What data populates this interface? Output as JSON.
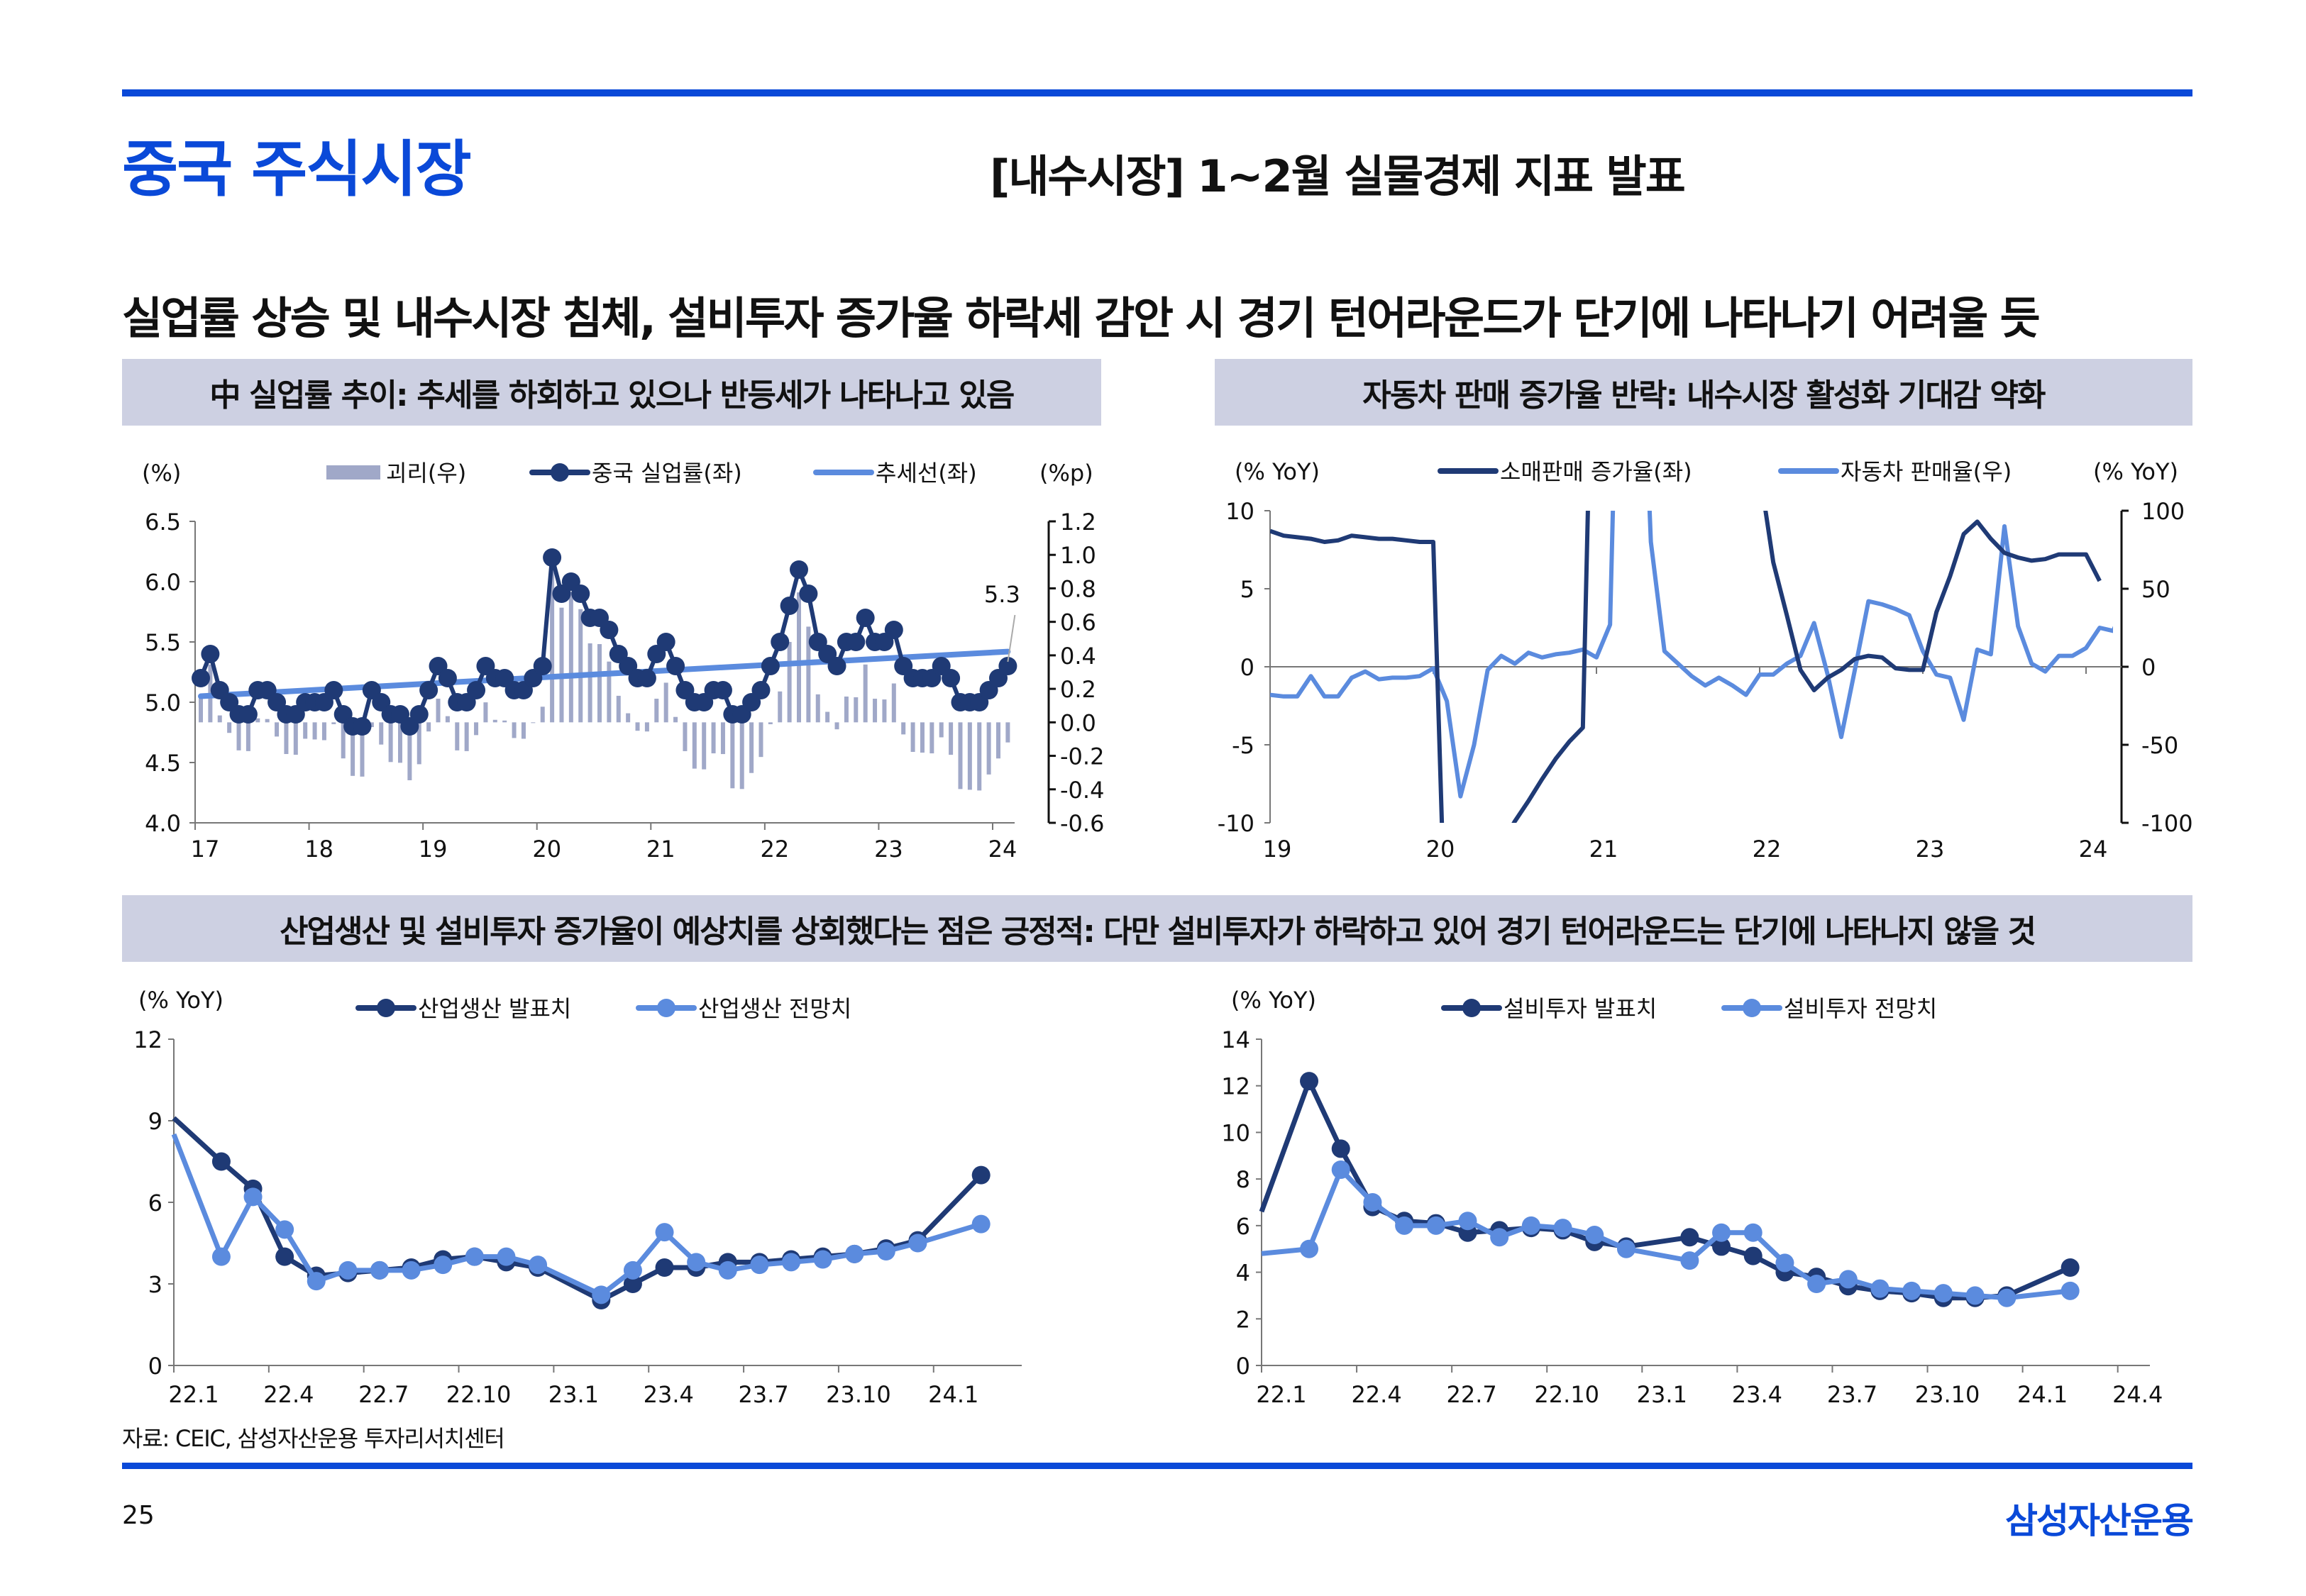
{
  "header": {
    "section_title": "중국 주식시장",
    "subtitle": "[내수시장] 1~2월 실물경제 지표 발표",
    "headline": "실업률 상승 및 내수시장 침체, 설비투자 증가율 하락세 감안 시 경기 턴어라운드가 단기에 나타나기 어려울 듯"
  },
  "bands": {
    "top_left": "中 실업률 추이: 추세를 하회하고 있으나 반등세가 나타나고 있음",
    "top_right": "자동차 판매 증가율 반락: 내수시장 활성화 기대감 약화",
    "bottom": "산업생산 및 설비투자 증가율이 예상치를 상회했다는 점은 긍정적: 다만 설비투자가 하락하고 있어 경기 턴어라운드는 단기에 나타나지 않을 것"
  },
  "colors": {
    "brand_blue": "#0A49D8",
    "band_bg": "#CDD0E2",
    "dark_navy": "#1F3A75",
    "light_blue": "#5B8BDE",
    "bar_lavender": "#A0A8C8"
  },
  "chart_data": [
    {
      "id": "unemployment",
      "type": "line",
      "title": "中 실업률 추이",
      "left_unit": "(%)",
      "right_unit": "(%p)",
      "legend": [
        "괴리(우)",
        "중국 실업률(좌)",
        "추세선(좌)"
      ],
      "legend_position": "top",
      "x_ticks": [
        "17",
        "18",
        "19",
        "20",
        "21",
        "22",
        "23",
        "24"
      ],
      "y_left_ticks": [
        "6.5",
        "6.0",
        "5.5",
        "5.0",
        "4.5",
        "4.0"
      ],
      "y_right_ticks": [
        "1.2",
        "1.0",
        "0.8",
        "0.6",
        "0.4",
        "0.2",
        "0.0",
        "-0.2",
        "-0.4",
        "-0.6"
      ],
      "ylim_left": [
        4.0,
        6.5
      ],
      "ylim_right": [
        -0.6,
        1.2
      ],
      "x_start": "2017-01",
      "annotation": "5.3",
      "series": [
        {
          "name": "중국 실업률(좌)",
          "axis": "left",
          "values": [
            5.2,
            5.4,
            5.1,
            5.0,
            4.9,
            4.9,
            5.1,
            5.1,
            5.0,
            4.9,
            4.9,
            5.0,
            5.0,
            5.0,
            5.1,
            4.9,
            4.8,
            4.8,
            5.1,
            5.0,
            4.9,
            4.9,
            4.8,
            4.9,
            5.1,
            5.3,
            5.2,
            5.0,
            5.0,
            5.1,
            5.3,
            5.2,
            5.2,
            5.1,
            5.1,
            5.2,
            5.3,
            6.2,
            5.9,
            6.0,
            5.9,
            5.7,
            5.7,
            5.6,
            5.4,
            5.3,
            5.2,
            5.2,
            5.4,
            5.5,
            5.3,
            5.1,
            5.0,
            5.0,
            5.1,
            5.1,
            4.9,
            4.9,
            5.0,
            5.1,
            5.3,
            5.5,
            5.8,
            6.1,
            5.9,
            5.5,
            5.4,
            5.3,
            5.5,
            5.5,
            5.7,
            5.5,
            5.5,
            5.6,
            5.3,
            5.2,
            5.2,
            5.2,
            5.3,
            5.2,
            5.0,
            5.0,
            5.0,
            5.1,
            5.2,
            5.3
          ]
        },
        {
          "name": "추세선(좌)",
          "axis": "left",
          "trend_start": 5.05,
          "trend_end": 5.42
        },
        {
          "name": "괴리(우)",
          "axis": "right",
          "type": "bar",
          "derived": "actual minus trend"
        }
      ]
    },
    {
      "id": "retail_auto",
      "type": "line",
      "title": "자동차 판매 증가율 반락",
      "left_unit": "(% YoY)",
      "right_unit": "(% YoY)",
      "legend": [
        "소매판매 증가율(좌)",
        "자동차 판매율(우)"
      ],
      "legend_position": "top",
      "x_ticks": [
        "19",
        "20",
        "21",
        "22",
        "23",
        "24"
      ],
      "y_left_ticks": [
        "10",
        "5",
        "0",
        "-5",
        "-10"
      ],
      "y_right_ticks": [
        "100",
        "50",
        "0",
        "-50",
        "-100"
      ],
      "ylim_left": [
        -10,
        10
      ],
      "ylim_right": [
        -100,
        100
      ],
      "x_start": "2019-01",
      "series": [
        {
          "name": "소매판매 증가율(좌)",
          "axis": "left",
          "values": [
            8.7,
            8.4,
            8.3,
            8.2,
            8.0,
            8.1,
            8.4,
            8.3,
            8.2,
            8.2,
            8.1,
            8.0,
            8.0,
            -20.5,
            -19.0,
            -16.2,
            -13.5,
            -11.4,
            -9.9,
            -8.6,
            -7.2,
            -5.9,
            -4.8,
            -3.9,
            33.8,
            33.8,
            33.9,
            29.6,
            25.7,
            23.0,
            20.7,
            18.1,
            16.4,
            14.9,
            13.7,
            12.5,
            12.5,
            6.7,
            3.3,
            -0.2,
            -1.5,
            -0.7,
            -0.2,
            0.5,
            0.7,
            0.6,
            -0.1,
            -0.2,
            -0.2,
            3.5,
            5.8,
            8.5,
            9.3,
            8.2,
            7.3,
            7.0,
            6.8,
            6.9,
            7.2,
            7.2,
            7.2,
            5.5
          ]
        },
        {
          "name": "자동차 판매율(우)",
          "axis": "right",
          "values": [
            -18,
            -19,
            -19,
            -6,
            -19,
            -19,
            -7,
            -3,
            -8,
            -7,
            -7,
            -6,
            -1,
            -22,
            -83,
            -50,
            -2,
            7,
            2,
            9,
            6,
            8,
            9,
            11,
            6,
            27,
            380,
            300,
            80,
            10,
            2,
            -6,
            -12,
            -7,
            -12,
            -18,
            -5,
            -5,
            2,
            7,
            28,
            -5,
            -45,
            -2,
            42,
            40,
            37,
            33,
            10,
            -5,
            -7,
            -34,
            11,
            8,
            90,
            26,
            2,
            -3,
            7,
            7,
            12,
            25,
            23,
            44,
            -20
          ]
        }
      ]
    },
    {
      "id": "industrial_production",
      "type": "line",
      "title": "산업생산",
      "left_unit": "(% YoY)",
      "legend": [
        "산업생산 발표치",
        "산업생산 전망치"
      ],
      "legend_position": "top",
      "x_ticks": [
        "22.1",
        "22.4",
        "22.7",
        "22.10",
        "23.1",
        "23.4",
        "23.7",
        "23.10",
        "24.1"
      ],
      "y_ticks": [
        "12",
        "9",
        "6",
        "3",
        "0"
      ],
      "ylim": [
        0,
        12
      ],
      "series": [
        {
          "name": "산업생산 발표치",
          "values": [
            9.1,
            7.5,
            6.5,
            4.0,
            3.3,
            3.4,
            3.5,
            3.6,
            3.9,
            4.0,
            3.8,
            3.6,
            null,
            2.4,
            3.0,
            3.6,
            3.6,
            3.8,
            3.8,
            3.9,
            4.0,
            4.1,
            4.3,
            4.6,
            null,
            7.0
          ]
        },
        {
          "name": "산업생산 전망치",
          "values": [
            8.5,
            4.0,
            6.2,
            5.0,
            3.1,
            3.5,
            3.5,
            3.5,
            3.7,
            4.0,
            4.0,
            3.7,
            null,
            2.6,
            3.5,
            4.9,
            3.8,
            3.5,
            3.7,
            3.8,
            3.9,
            4.1,
            4.2,
            4.5,
            null,
            5.2
          ]
        }
      ]
    },
    {
      "id": "fixed_asset_investment",
      "type": "line",
      "title": "설비투자",
      "left_unit": "(% YoY)",
      "legend": [
        "설비투자 발표치",
        "설비투자 전망치"
      ],
      "legend_position": "top",
      "x_ticks": [
        "22.1",
        "22.4",
        "22.7",
        "22.10",
        "23.1",
        "23.4",
        "23.7",
        "23.10",
        "24.1",
        "24.4"
      ],
      "y_ticks": [
        "14",
        "12",
        "10",
        "8",
        "6",
        "4",
        "2",
        "0"
      ],
      "ylim": [
        0,
        14
      ],
      "series": [
        {
          "name": "설비투자 발표치",
          "values": [
            6.6,
            12.2,
            9.3,
            6.8,
            6.2,
            6.1,
            5.7,
            5.8,
            5.9,
            5.8,
            5.3,
            5.1,
            null,
            5.5,
            5.1,
            4.7,
            4.0,
            3.8,
            3.4,
            3.2,
            3.1,
            2.9,
            2.9,
            3.0,
            null,
            4.2
          ]
        },
        {
          "name": "설비투자 전망치",
          "values": [
            4.8,
            5.0,
            8.4,
            7.0,
            6.0,
            6.0,
            6.2,
            5.5,
            6.0,
            5.9,
            5.6,
            5.0,
            null,
            4.5,
            5.7,
            5.7,
            4.4,
            3.5,
            3.7,
            3.3,
            3.2,
            3.1,
            3.0,
            2.9,
            null,
            3.2
          ]
        }
      ]
    }
  ],
  "footer": {
    "source": "자료: CEIC, 삼성자산운용 투자리서치센터",
    "page_number": "25",
    "brand": "삼성자산운용"
  }
}
